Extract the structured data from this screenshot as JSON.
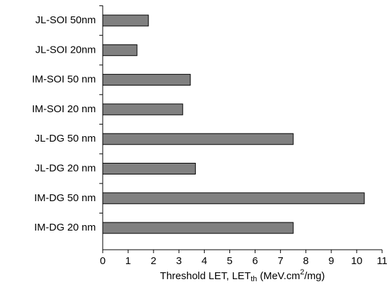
{
  "chart_data": {
    "type": "bar",
    "orientation": "horizontal",
    "categories": [
      "JL-SOI 50nm",
      "JL-SOI 20nm",
      "IM-SOI 50 nm",
      "IM-SOI 20 nm",
      "JL-DG 50 nm",
      "JL-DG 20 nm",
      "IM-DG 50 nm",
      "IM-DG 20 nm"
    ],
    "values": [
      1.8,
      1.35,
      3.45,
      3.15,
      7.5,
      3.65,
      10.3,
      7.5
    ],
    "color": "#808080",
    "xlim": [
      0,
      11
    ],
    "xticks": [
      0,
      1,
      2,
      3,
      4,
      5,
      6,
      7,
      8,
      9,
      10,
      11
    ],
    "xlabel_parts": [
      "Threshold LET, LET",
      "th",
      " (MeV.cm",
      "2",
      "/mg)"
    ]
  }
}
